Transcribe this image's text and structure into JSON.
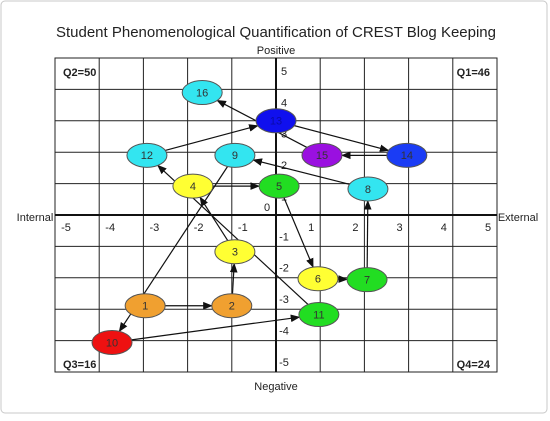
{
  "chart_data": {
    "type": "scatter",
    "title": "Student Phenomenological Quantification of CREST Blog Keeping",
    "y_positive_label": "Positive",
    "y_negative_label": "Negative",
    "x_negative_label": "Internal",
    "x_positive_label": "External",
    "quadrants": [
      "Q2=50",
      "Q1=46",
      "Q3=16",
      "Q4=24"
    ],
    "point_labels": [
      "1",
      "2",
      "3",
      "4",
      "5",
      "6",
      "7",
      "8",
      "9",
      "10",
      "11",
      "12",
      "13",
      "14",
      "15",
      "16"
    ],
    "x": [
      -2.96,
      -1.0,
      -0.93,
      -1.88,
      0.07,
      0.95,
      2.06,
      2.08,
      -0.93,
      -3.71,
      0.97,
      -2.92,
      0.0,
      2.96,
      1.04,
      -1.67
    ],
    "values": [
      -2.89,
      -2.89,
      -1.17,
      0.92,
      0.92,
      -2.03,
      -2.06,
      0.83,
      1.9,
      -4.06,
      -3.17,
      1.9,
      3.0,
      1.9,
      1.9,
      3.9
    ],
    "colors": [
      "#f0a030",
      "#f0a030",
      "#ffff33",
      "#ffff33",
      "#22dd22",
      "#ffff33",
      "#22dd22",
      "#33e5f0",
      "#33e5f0",
      "#ee1111",
      "#22dd22",
      "#33e5f0",
      "#1010ee",
      "#1a3cf5",
      "#9a10e0",
      "#33e5f0"
    ],
    "xlim": [
      -5,
      5
    ],
    "ylim": [
      -5,
      5
    ],
    "xticks": [
      -5,
      -4,
      -3,
      -2,
      -1,
      1,
      2,
      3,
      4,
      5
    ],
    "yticks": [
      5,
      4,
      3,
      2,
      1,
      0,
      -1,
      -2,
      -3,
      -4,
      -5
    ],
    "grid": true
  }
}
